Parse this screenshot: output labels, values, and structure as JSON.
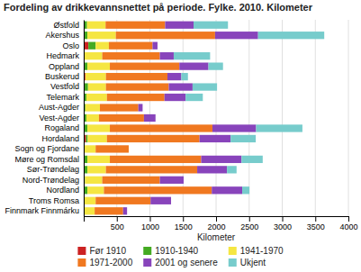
{
  "chart_data": {
    "type": "bar",
    "orientation": "horizontal",
    "stacked": true,
    "title": "Fordeling av drikkevannsnettet på periode. Fylke. 2010. Kilometer",
    "xlabel": "Kilometer",
    "categories": [
      "Østfold",
      "Akershus",
      "Oslo",
      "Hedmark",
      "Oppland",
      "Buskerud",
      "Vestfold",
      "Telemark",
      "Aust-Agder",
      "Vest-Agder",
      "Rogaland",
      "Hordaland",
      "Sogn og Fjordane",
      "Møre og Romsdal",
      "Sør-Trøndelag",
      "Nord-Trøndelag",
      "Nordland",
      "Troms Romsa",
      "Finnmark Finnmárku"
    ],
    "series": [
      {
        "name": "Før 1910",
        "color": "#cc2222",
        "values": [
          0,
          0,
          70,
          0,
          0,
          25,
          0,
          0,
          0,
          0,
          0,
          35,
          0,
          0,
          0,
          0,
          0,
          0,
          0
        ]
      },
      {
        "name": "1910-1940",
        "color": "#44aa22",
        "values": [
          50,
          55,
          110,
          0,
          55,
          0,
          65,
          40,
          25,
          40,
          55,
          25,
          0,
          55,
          55,
          20,
          55,
          0,
          0
        ]
      },
      {
        "name": "1941-1970",
        "color": "#f5e642",
        "values": [
          280,
          430,
          200,
          280,
          340,
          310,
          270,
          310,
          220,
          190,
          340,
          290,
          180,
          340,
          280,
          260,
          250,
          180,
          165
        ]
      },
      {
        "name": "1971-2000",
        "color": "#f07820",
        "values": [
          900,
          1500,
          660,
          870,
          1050,
          930,
          950,
          870,
          580,
          680,
          1550,
          1400,
          500,
          1380,
          1380,
          870,
          1630,
          830,
          430
        ]
      },
      {
        "name": "2001 og senere",
        "color": "#8844bb",
        "values": [
          430,
          650,
          75,
          210,
          440,
          210,
          360,
          320,
          65,
          175,
          660,
          470,
          0,
          610,
          450,
          360,
          460,
          310,
          60
        ]
      },
      {
        "name": "Ukjent",
        "color": "#77cccc",
        "values": [
          520,
          1000,
          0,
          550,
          220,
          100,
          370,
          260,
          0,
          0,
          700,
          380,
          0,
          320,
          145,
          0,
          110,
          0,
          0
        ]
      }
    ],
    "xlim": [
      0,
      4000
    ],
    "xticks": [
      {
        "value": 0,
        "label": null
      },
      500,
      1000,
      1500,
      2000,
      2500,
      3000,
      3500,
      4000
    ],
    "grid": true,
    "legend": "bottom"
  }
}
